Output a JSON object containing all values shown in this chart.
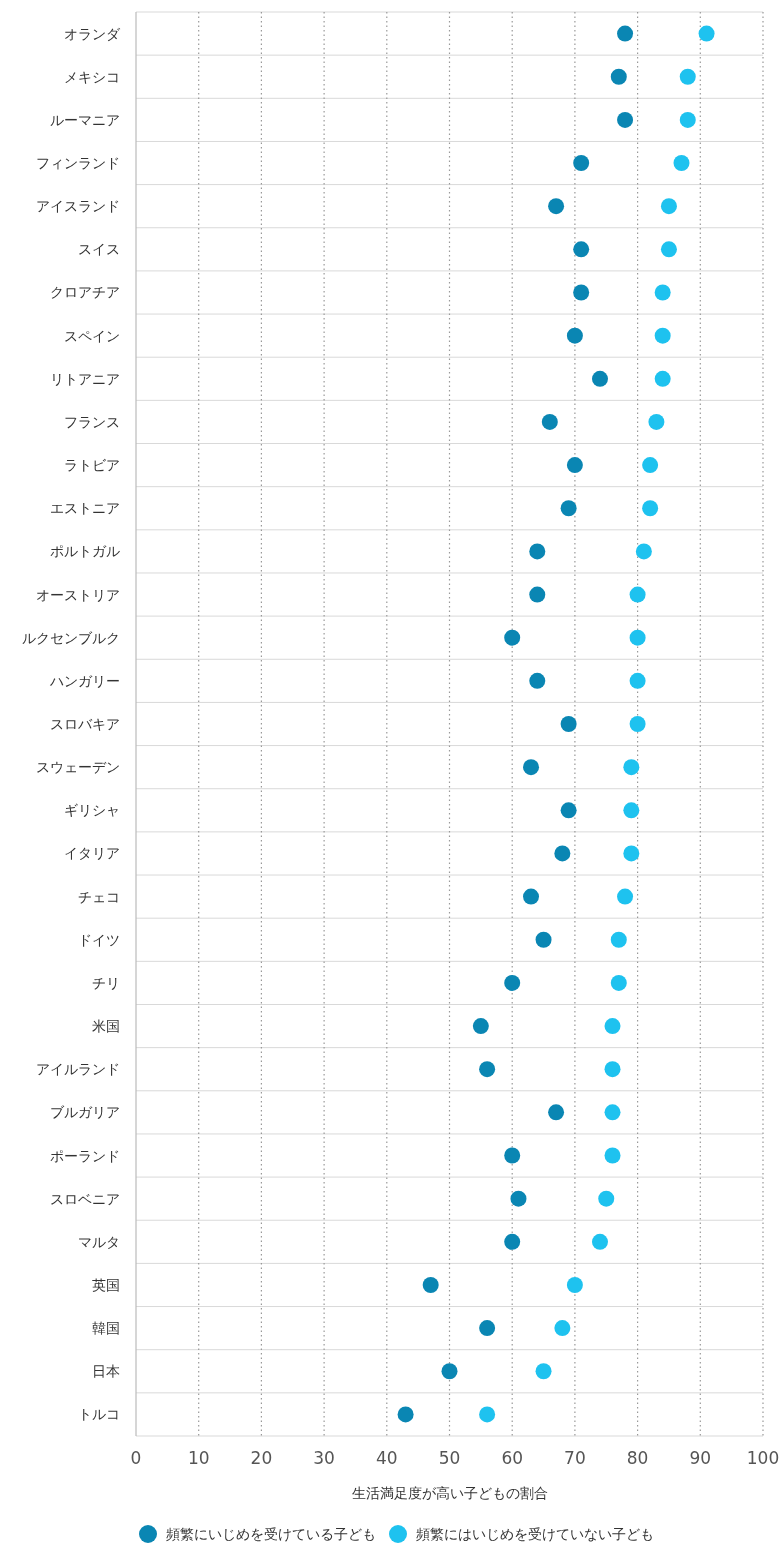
{
  "chart_data": {
    "type": "scatter",
    "orientation": "horizontal",
    "xlabel": "生活満足度が高い子どもの割合",
    "xlim": [
      0,
      100
    ],
    "xticks": [
      0,
      10,
      20,
      30,
      40,
      50,
      60,
      70,
      80,
      90,
      100
    ],
    "grid": "x",
    "legend": "bottom",
    "marker": "circle",
    "categories": [
      "オランダ",
      "メキシコ",
      "ルーマニア",
      "フィンランド",
      "アイスランド",
      "スイス",
      "クロアチア",
      "スペイン",
      "リトアニア",
      "フランス",
      "ラトビア",
      "エストニア",
      "ポルトガル",
      "オーストリア",
      "ルクセンブルク",
      "ハンガリー",
      "スロバキア",
      "スウェーデン",
      "ギリシャ",
      "イタリア",
      "チェコ",
      "ドイツ",
      "チリ",
      "米国",
      "アイルランド",
      "ブルガリア",
      "ポーランド",
      "スロベニア",
      "マルタ",
      "英国",
      "韓国",
      "日本",
      "トルコ"
    ],
    "series": [
      {
        "name": "頻繁にいじめを受けている子ども",
        "color": "#0a86b3",
        "values": [
          78,
          77,
          78,
          71,
          67,
          71,
          71,
          70,
          74,
          66,
          70,
          69,
          64,
          64,
          60,
          64,
          69,
          63,
          69,
          68,
          63,
          65,
          60,
          55,
          56,
          67,
          60,
          61,
          60,
          47,
          56,
          50,
          43
        ]
      },
      {
        "name": "頻繁にはいじめを受けていない子ども",
        "color": "#1ec2ef",
        "values": [
          91,
          88,
          88,
          87,
          85,
          85,
          84,
          84,
          84,
          83,
          82,
          82,
          81,
          80,
          80,
          80,
          80,
          79,
          79,
          79,
          78,
          77,
          77,
          76,
          76,
          76,
          76,
          75,
          74,
          70,
          68,
          65,
          56
        ]
      }
    ]
  }
}
